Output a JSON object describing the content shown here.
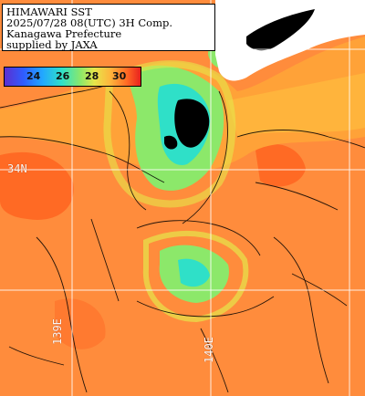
{
  "title": {
    "line1": "HIMAWARI SST",
    "line2": "2025/07/28 08(UTC) 3H Comp.",
    "line3": "Kanagawa Prefecture",
    "line4": "supplied by JAXA"
  },
  "colorbar": {
    "ticks": [
      "24",
      "26",
      "28",
      "30"
    ],
    "colors": [
      "#5b2fd0",
      "#2f5dff",
      "#22a8ff",
      "#2fe0c8",
      "#8ce86a",
      "#e6e64a",
      "#ffb43c",
      "#ff6a24",
      "#e8201e"
    ]
  },
  "grid_labels": {
    "lat": "34N",
    "lon1": "139E",
    "lon2": "140E"
  },
  "palette": {
    "ocean_warm": "#ff8c3c",
    "ocean_hot": "#ff6a24",
    "ocean_cool": "#ffb43c",
    "coast_green": "#8ce86a",
    "coast_teal": "#2fe0c8",
    "land": "#ffffff",
    "cloud_mask": "#000000"
  }
}
